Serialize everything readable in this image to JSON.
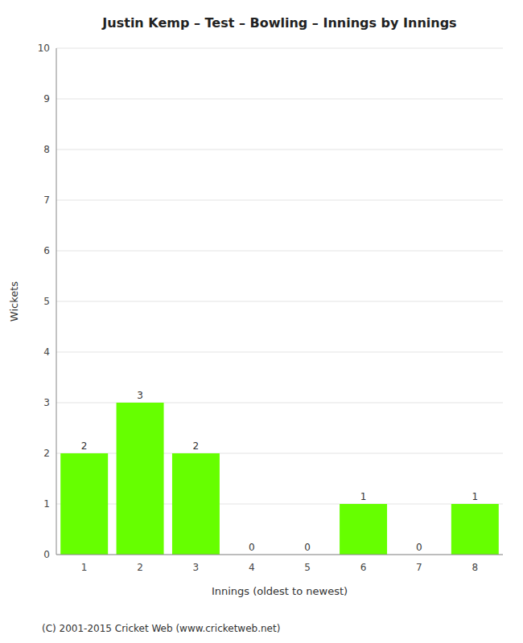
{
  "chart_data": {
    "type": "bar",
    "title": "Justin Kemp – Test – Bowling – Innings by Innings",
    "x_label": "Innings (oldest to newest)",
    "y_label": "Wickets",
    "categories": [
      "1",
      "2",
      "3",
      "4",
      "5",
      "6",
      "7",
      "8"
    ],
    "values": [
      2,
      3,
      2,
      0,
      0,
      1,
      0,
      1
    ],
    "color": "#66ff00",
    "ylim": [
      0,
      10
    ],
    "yticks": [
      0,
      1,
      2,
      3,
      4,
      5,
      6,
      7,
      8,
      9,
      10
    ],
    "grid": true,
    "data_labels": true,
    "annotations": [
      "(C) 2001-2015 Cricket Web (www.cricketweb.net)"
    ]
  }
}
